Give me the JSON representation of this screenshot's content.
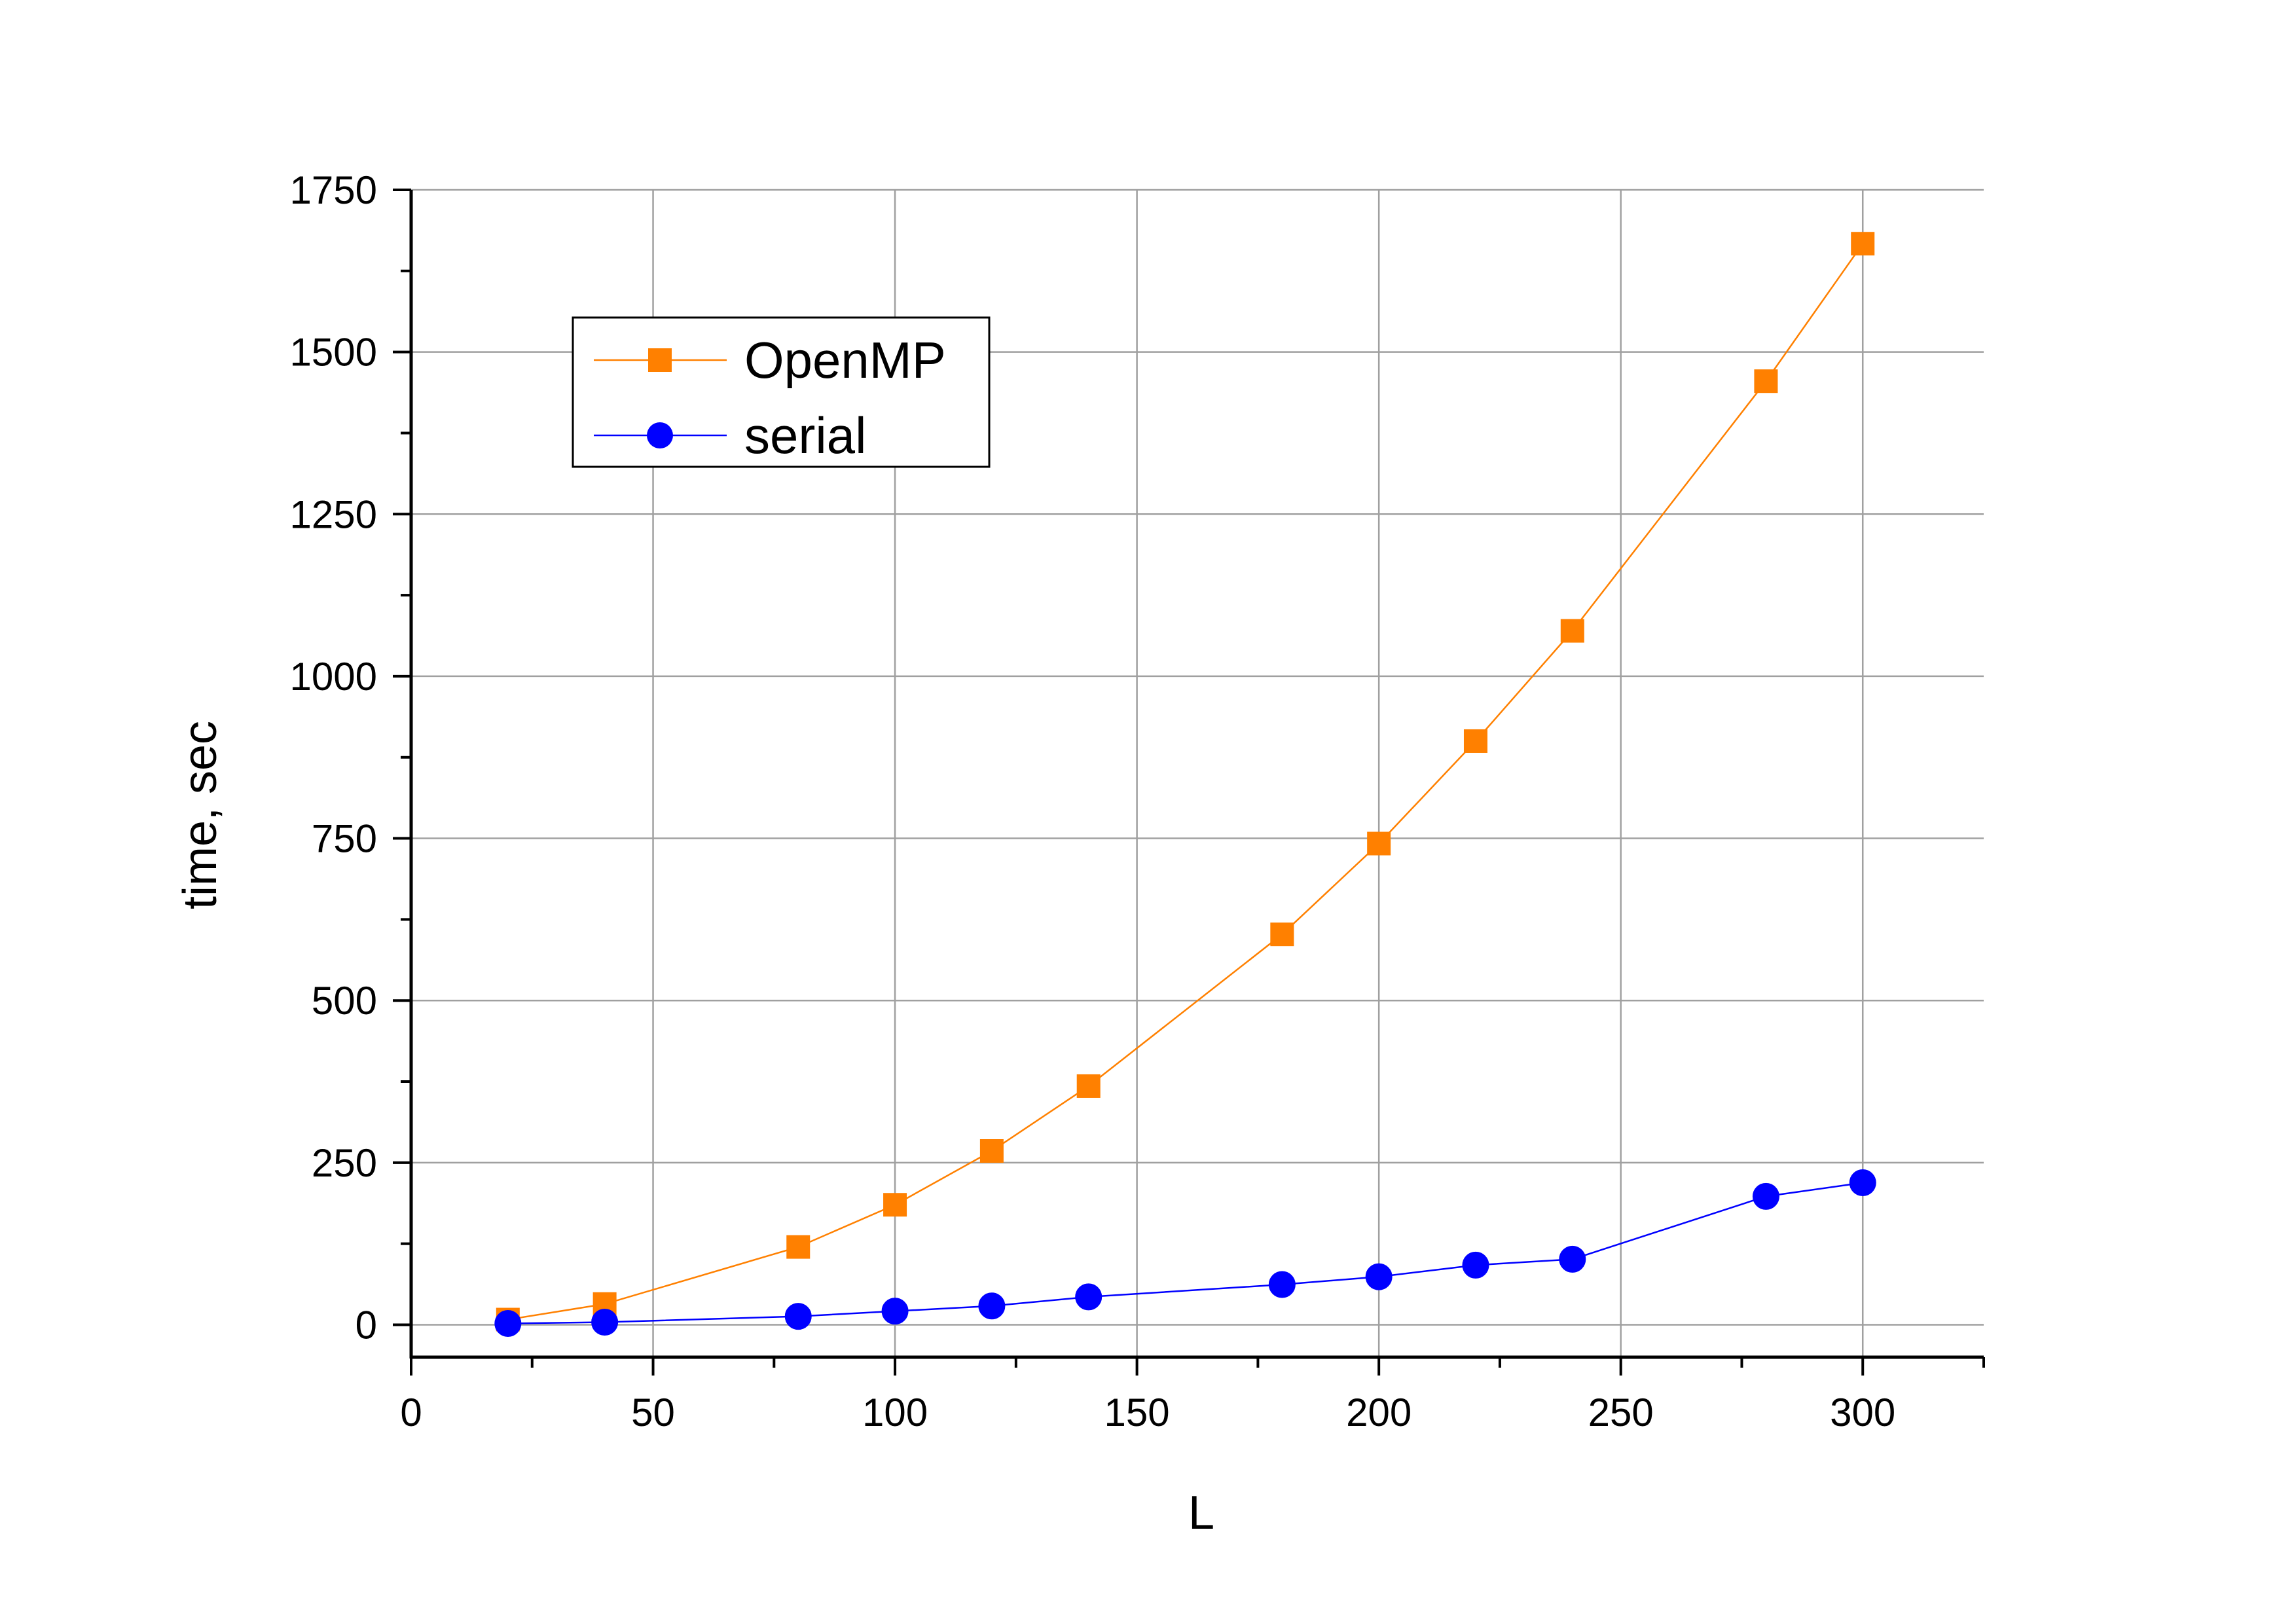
{
  "chart_data": {
    "type": "line",
    "title": "",
    "xlabel": "L",
    "ylabel": "time, sec",
    "xlim": [
      0,
      325
    ],
    "ylim": [
      -50,
      1750
    ],
    "x_ticks": [
      0,
      50,
      100,
      150,
      200,
      250,
      300
    ],
    "y_ticks": [
      0,
      250,
      500,
      750,
      1000,
      1250,
      1500,
      1750
    ],
    "grid": true,
    "legend_position": "top-left",
    "series": [
      {
        "name": "OpenMP",
        "color": "#ff8000",
        "marker": "square",
        "x": [
          20,
          40,
          80,
          100,
          120,
          140,
          180,
          200,
          220,
          240,
          280,
          300
        ],
        "y": [
          8,
          32,
          120,
          185,
          268,
          368,
          602,
          742,
          900,
          1070,
          1455,
          1667
        ]
      },
      {
        "name": "serial",
        "color": "#0000ff",
        "marker": "circle",
        "x": [
          20,
          40,
          80,
          100,
          120,
          140,
          180,
          200,
          220,
          240,
          280,
          300
        ],
        "y": [
          2,
          4,
          13,
          21,
          29,
          43,
          62,
          74,
          92,
          101,
          198,
          219
        ]
      }
    ]
  }
}
